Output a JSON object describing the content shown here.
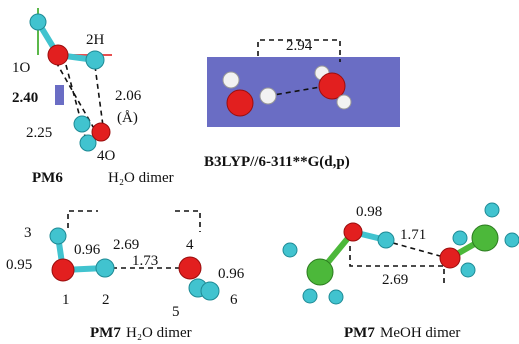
{
  "panels": [
    {
      "labels": [
        "2H",
        "1O",
        "2.06",
        "(Å)",
        "2.40",
        "2.25",
        "4O"
      ],
      "caption": {
        "method": "PM6",
        "system": "H₂O dimer"
      }
    },
    {
      "labels": [
        "2.94"
      ],
      "caption": {
        "method": "B3LYP//6-311**G(d,p)"
      }
    },
    {
      "labels": [
        "3",
        "2.69",
        "0.95",
        "0.96",
        "1.73",
        "4",
        "0.96",
        "1",
        "2",
        "5",
        "6"
      ],
      "caption": {
        "method": "PM7",
        "system": "H₂O dimer"
      }
    },
    {
      "labels": [
        "0.98",
        "1.71",
        "2.69"
      ],
      "caption": {
        "method": "PM7",
        "system": "MeOH dimer"
      }
    }
  ]
}
